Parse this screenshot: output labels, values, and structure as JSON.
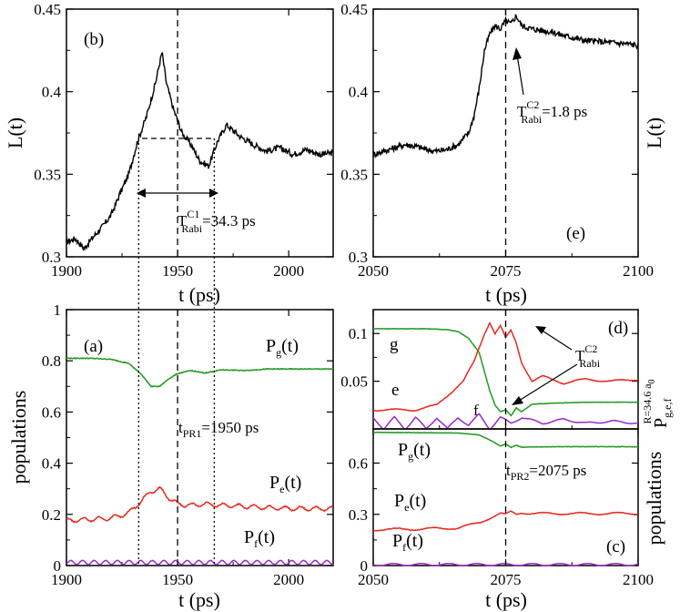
{
  "colors": {
    "g": "#1f9a1f",
    "e": "#e8281e",
    "f": "#9a28c8",
    "axis": "#000000"
  },
  "chart_data": [
    {
      "id": "b",
      "type": "line",
      "panel_label": "(b)",
      "xlabel": "t (ps)",
      "ylabel": "L(t)",
      "xlim": [
        1900,
        2020
      ],
      "ylim": [
        0.3,
        0.45
      ],
      "xticks": [
        "1900",
        "1950",
        "2000"
      ],
      "yticks": [
        "0.3",
        "0.35",
        "0.4",
        "0.45"
      ],
      "annotation": {
        "base": "T",
        "sup": "C1",
        "sub": "Rabi",
        "value": "=34.3 ps"
      },
      "series": [
        {
          "name": "L(t)",
          "x": [
            1900,
            1904,
            1908,
            1912,
            1916,
            1920,
            1924,
            1928,
            1932,
            1936,
            1940,
            1943,
            1945,
            1948,
            1952,
            1956,
            1960,
            1964,
            1968,
            1972,
            1978,
            1984,
            1990,
            1996,
            2002,
            2008,
            2014,
            2020
          ],
          "y": [
            0.309,
            0.311,
            0.305,
            0.312,
            0.318,
            0.325,
            0.338,
            0.35,
            0.37,
            0.385,
            0.405,
            0.424,
            0.405,
            0.39,
            0.375,
            0.368,
            0.358,
            0.355,
            0.37,
            0.38,
            0.373,
            0.368,
            0.364,
            0.366,
            0.362,
            0.365,
            0.362,
            0.363
          ]
        }
      ]
    },
    {
      "id": "e",
      "type": "line",
      "panel_label": "(e)",
      "xlabel": "t (ps)",
      "ylabel": "L(t)",
      "xlim": [
        2050,
        2100
      ],
      "ylim": [
        0.3,
        0.45
      ],
      "xticks": [
        "2050",
        "2075",
        "2100"
      ],
      "yticks": [
        "0.3",
        "0.35",
        "0.4",
        "0.45"
      ],
      "annotation": {
        "base": "T",
        "sup": "C2",
        "sub": "Rabi",
        "value": "=1.8 ps"
      },
      "series": [
        {
          "name": "L(t)",
          "x": [
            2050,
            2052,
            2054,
            2056,
            2058,
            2060,
            2062,
            2064,
            2066,
            2068,
            2069,
            2070,
            2071,
            2072,
            2073,
            2074,
            2075,
            2076,
            2077,
            2078,
            2080,
            2082,
            2084,
            2086,
            2090,
            2094,
            2098,
            2100
          ],
          "y": [
            0.362,
            0.364,
            0.366,
            0.368,
            0.367,
            0.365,
            0.364,
            0.365,
            0.368,
            0.375,
            0.385,
            0.402,
            0.425,
            0.435,
            0.44,
            0.438,
            0.443,
            0.441,
            0.446,
            0.44,
            0.438,
            0.437,
            0.436,
            0.434,
            0.431,
            0.43,
            0.429,
            0.428
          ]
        }
      ]
    },
    {
      "id": "a",
      "type": "line",
      "panel_label": "(a)",
      "xlabel": "t (ps)",
      "ylabel": "populations",
      "xlim": [
        1900,
        2020
      ],
      "ylim": [
        0,
        1
      ],
      "xticks": [
        "1900",
        "1950",
        "2000"
      ],
      "yticks": [
        "0",
        "0.2",
        "0.4",
        "0.6",
        "0.8",
        "1"
      ],
      "annotation": {
        "base": "t",
        "sub": "PR1",
        "value": "=1950 ps"
      },
      "series": [
        {
          "name": "g",
          "label_base": "P",
          "label_sub": "g",
          "label_tail": "(t)",
          "x": [
            1900,
            1910,
            1920,
            1928,
            1934,
            1938,
            1942,
            1946,
            1950,
            1956,
            1962,
            1970,
            1980,
            1990,
            2000,
            2010,
            2020
          ],
          "y": [
            0.81,
            0.81,
            0.806,
            0.79,
            0.745,
            0.7,
            0.7,
            0.73,
            0.75,
            0.762,
            0.752,
            0.765,
            0.762,
            0.768,
            0.768,
            0.768,
            0.768
          ]
        },
        {
          "name": "e",
          "label_base": "P",
          "label_sub": "e",
          "label_tail": "(t)",
          "x": [
            1900,
            1910,
            1920,
            1928,
            1934,
            1938,
            1942,
            1946,
            1950,
            1956,
            1962,
            1970,
            1980,
            1990,
            2000,
            2010,
            2020
          ],
          "y": [
            0.175,
            0.18,
            0.185,
            0.205,
            0.255,
            0.29,
            0.3,
            0.265,
            0.24,
            0.235,
            0.24,
            0.235,
            0.232,
            0.226,
            0.223,
            0.222,
            0.222
          ]
        },
        {
          "name": "f",
          "label_base": "P",
          "label_sub": "f",
          "label_tail": "(t)",
          "x": [
            1900,
            1910,
            1920,
            1930,
            1940,
            1950,
            1960,
            1970,
            1980,
            1990,
            2000,
            2010,
            2020
          ],
          "y": [
            0.012,
            0.012,
            0.012,
            0.012,
            0.012,
            0.012,
            0.012,
            0.012,
            0.012,
            0.012,
            0.012,
            0.012,
            0.012
          ]
        }
      ]
    },
    {
      "id": "d",
      "type": "line",
      "panel_label": "(d)",
      "ylabel_base": "P",
      "ylabel_sub": "g,e,f",
      "ylabel_sup": "R=34.6 a",
      "ylabel_sup_sub": "0",
      "xlim": [
        2050,
        2100
      ],
      "ylim": [
        0,
        0.125
      ],
      "yticks": [
        "0.05",
        "0.1"
      ],
      "annotation": {
        "base": "T",
        "sup": "C2",
        "sub": "Rabi"
      },
      "series": [
        {
          "name": "g",
          "label": "g",
          "x": [
            2050,
            2055,
            2060,
            2064,
            2066,
            2068,
            2070,
            2071,
            2072,
            2073,
            2074,
            2075,
            2076,
            2077,
            2078,
            2080,
            2084,
            2090,
            2100
          ],
          "y": [
            0.105,
            0.105,
            0.105,
            0.104,
            0.102,
            0.095,
            0.08,
            0.06,
            0.04,
            0.025,
            0.018,
            0.02,
            0.014,
            0.022,
            0.018,
            0.026,
            0.027,
            0.028,
            0.028
          ]
        },
        {
          "name": "e",
          "label": "e",
          "x": [
            2050,
            2054,
            2058,
            2062,
            2065,
            2067,
            2069,
            2070,
            2071,
            2072,
            2073,
            2074,
            2075,
            2076,
            2077,
            2078,
            2080,
            2082,
            2086,
            2090,
            2095,
            2100
          ],
          "y": [
            0.02,
            0.02,
            0.02,
            0.025,
            0.04,
            0.05,
            0.07,
            0.085,
            0.1,
            0.112,
            0.1,
            0.108,
            0.095,
            0.103,
            0.09,
            0.07,
            0.05,
            0.055,
            0.048,
            0.052,
            0.05,
            0.052
          ]
        },
        {
          "name": "f",
          "label": "f",
          "x": [
            2050,
            2052,
            2054,
            2056,
            2058,
            2060,
            2062,
            2064,
            2066,
            2068,
            2070,
            2072,
            2074,
            2076,
            2078,
            2082,
            2086,
            2090,
            2095,
            2100
          ],
          "y": [
            0.012,
            0.0,
            0.012,
            0.0,
            0.012,
            0.0,
            0.012,
            0.0,
            0.012,
            0.004,
            0.015,
            0.0,
            0.012,
            0.006,
            0.012,
            0.006,
            0.01,
            0.006,
            0.008,
            0.006
          ]
        }
      ]
    },
    {
      "id": "c",
      "type": "line",
      "panel_label": "(c)",
      "xlabel": "t (ps)",
      "ylabel": "populations",
      "xlim": [
        2050,
        2100
      ],
      "ylim": [
        0,
        0.8
      ],
      "xticks": [
        "2050",
        "2075",
        "2100"
      ],
      "yticks": [
        "0",
        "0.3",
        "0.6"
      ],
      "annotation": {
        "base": "t",
        "sub": "PR2",
        "value": "=2075 ps"
      },
      "series": [
        {
          "name": "g",
          "label_base": "P",
          "label_sub": "g",
          "label_tail": "(t)",
          "x": [
            2050,
            2060,
            2066,
            2070,
            2072,
            2074,
            2075,
            2076,
            2077,
            2078,
            2080,
            2085,
            2090,
            2100
          ],
          "y": [
            0.78,
            0.778,
            0.776,
            0.765,
            0.735,
            0.7,
            0.712,
            0.692,
            0.705,
            0.693,
            0.695,
            0.696,
            0.696,
            0.696
          ]
        },
        {
          "name": "e",
          "label_base": "P",
          "label_sub": "e",
          "label_tail": "(t)",
          "x": [
            2050,
            2060,
            2066,
            2070,
            2072,
            2074,
            2075,
            2076,
            2077,
            2078,
            2080,
            2085,
            2090,
            2100
          ],
          "y": [
            0.21,
            0.215,
            0.22,
            0.25,
            0.28,
            0.305,
            0.298,
            0.315,
            0.3,
            0.31,
            0.305,
            0.305,
            0.304,
            0.305
          ]
        },
        {
          "name": "f",
          "label_base": "P",
          "label_sub": "f",
          "label_tail": "(t)",
          "x": [
            2050,
            2060,
            2070,
            2080,
            2090,
            2100
          ],
          "y": [
            0.006,
            0.006,
            0.006,
            0.006,
            0.006,
            0.006
          ]
        }
      ]
    }
  ]
}
